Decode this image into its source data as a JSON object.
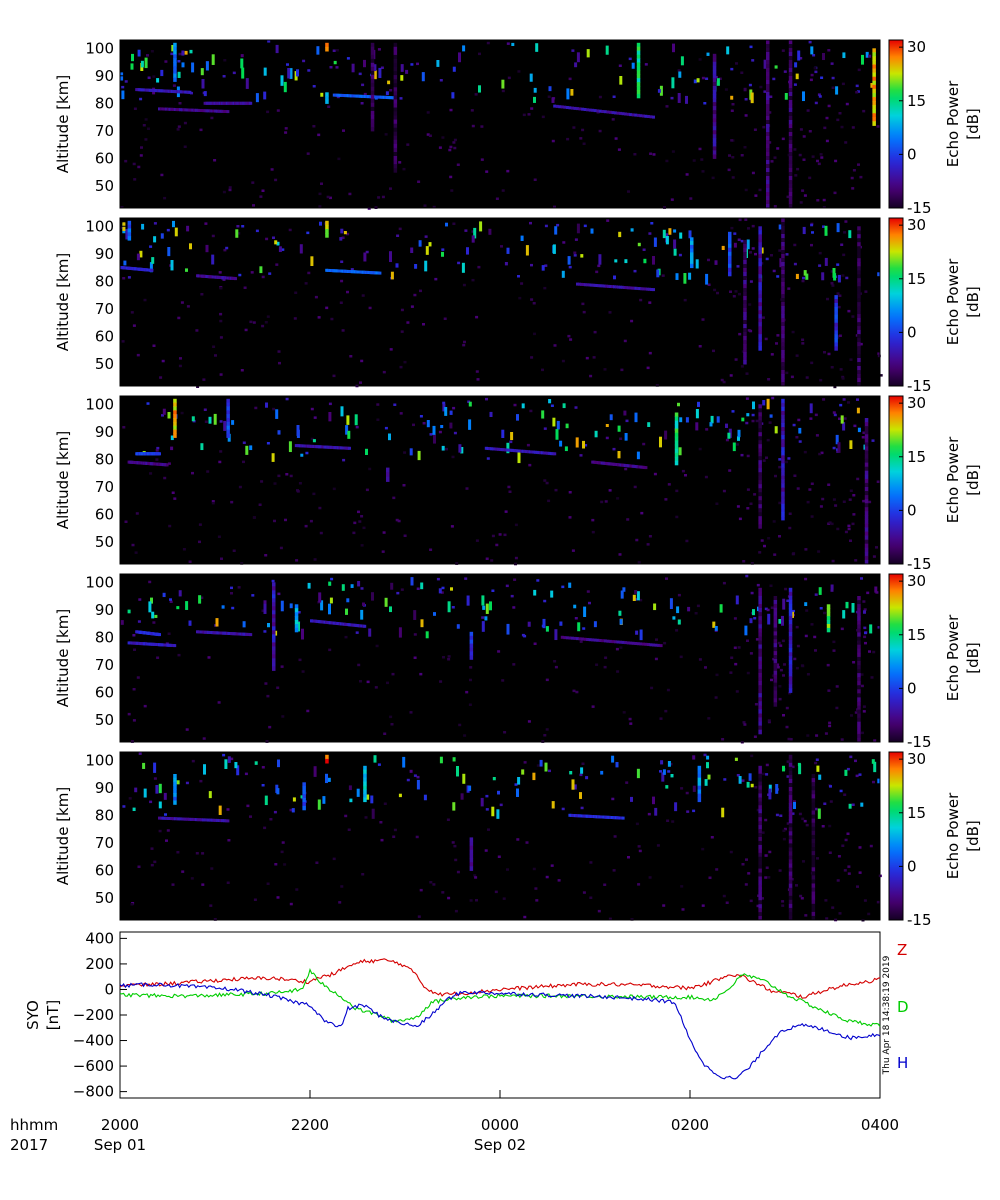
{
  "chart_data": [
    {
      "type": "heatmap",
      "panel": 1,
      "ylabel": "Altitude [km]",
      "yticks": [
        50,
        60,
        70,
        80,
        90,
        100
      ],
      "ylim": [
        42,
        103
      ],
      "xlim": [
        "2017-09-01 20:00",
        "2017-09-02 04:00"
      ],
      "colorbar": {
        "label": [
          "Echo Power",
          "[dB]"
        ],
        "ticks": [
          -15,
          0,
          15,
          30
        ],
        "range": [
          -15,
          32
        ]
      },
      "features": [
        {
          "type": "layer",
          "t": [
            0.02,
            0.09
          ],
          "alt": [
            85,
            84
          ],
          "value": -5
        },
        {
          "type": "layer",
          "t": [
            0.05,
            0.14
          ],
          "alt": [
            78,
            77
          ],
          "value": -8
        },
        {
          "type": "layer",
          "t": [
            0.11,
            0.17
          ],
          "alt": [
            80,
            80
          ],
          "value": -7
        },
        {
          "type": "layer",
          "t": [
            0.28,
            0.36
          ],
          "alt": [
            83,
            82
          ],
          "value": 2
        },
        {
          "type": "layer",
          "t": [
            0.57,
            0.7
          ],
          "alt": [
            79,
            75
          ],
          "value": -6
        },
        {
          "type": "column",
          "t": 0.07,
          "alt": [
            88,
            102
          ],
          "value": 5
        },
        {
          "type": "column",
          "t": 0.27,
          "alt": [
            80,
            84
          ],
          "value": 10
        },
        {
          "type": "column",
          "t": 0.27,
          "alt": [
            99,
            102
          ],
          "value": 30
        },
        {
          "type": "column",
          "t": 0.68,
          "alt": [
            82,
            102
          ],
          "value": 15
        },
        {
          "type": "column",
          "t": 0.33,
          "alt": [
            70,
            102
          ],
          "value": -12
        },
        {
          "type": "column",
          "t": 0.36,
          "alt": [
            55,
            102
          ],
          "value": -13
        },
        {
          "type": "column",
          "t": 0.78,
          "alt": [
            60,
            98
          ],
          "value": -8
        },
        {
          "type": "column",
          "t": 0.85,
          "alt": [
            42,
            103
          ],
          "value": -10
        },
        {
          "type": "column",
          "t": 0.88,
          "alt": [
            42,
            103
          ],
          "value": -11
        },
        {
          "type": "column",
          "t": 0.99,
          "alt": [
            72,
            100
          ],
          "value": 25
        }
      ]
    },
    {
      "type": "heatmap",
      "panel": 2,
      "ylabel": "Altitude [km]",
      "yticks": [
        50,
        60,
        70,
        80,
        90,
        100
      ],
      "ylim": [
        42,
        103
      ],
      "xlim": [
        "2017-09-01 20:00",
        "2017-09-02 04:00"
      ],
      "colorbar": {
        "label": [
          "Echo Power",
          "[dB]"
        ],
        "ticks": [
          -15,
          0,
          15,
          30
        ],
        "range": [
          -15,
          32
        ]
      },
      "features": [
        {
          "type": "layer",
          "t": [
            0.0,
            0.04
          ],
          "alt": [
            85,
            84
          ],
          "value": -3
        },
        {
          "type": "layer",
          "t": [
            0.1,
            0.15
          ],
          "alt": [
            82,
            81
          ],
          "value": -7
        },
        {
          "type": "layer",
          "t": [
            0.27,
            0.34
          ],
          "alt": [
            84,
            83
          ],
          "value": 3
        },
        {
          "type": "layer",
          "t": [
            0.6,
            0.7
          ],
          "alt": [
            79,
            77
          ],
          "value": -6
        },
        {
          "type": "column",
          "t": 0.01,
          "alt": [
            95,
            102
          ],
          "value": 3
        },
        {
          "type": "column",
          "t": 0.27,
          "alt": [
            96,
            102
          ],
          "value": 22
        },
        {
          "type": "column",
          "t": 0.75,
          "alt": [
            85,
            96
          ],
          "value": 5
        },
        {
          "type": "column",
          "t": 0.8,
          "alt": [
            82,
            98
          ],
          "value": 0
        },
        {
          "type": "column",
          "t": 0.82,
          "alt": [
            50,
            95
          ],
          "value": -10
        },
        {
          "type": "column",
          "t": 0.84,
          "alt": [
            55,
            100
          ],
          "value": -6
        },
        {
          "type": "column",
          "t": 0.87,
          "alt": [
            42,
            103
          ],
          "value": -11
        },
        {
          "type": "column",
          "t": 0.94,
          "alt": [
            55,
            75
          ],
          "value": -2
        },
        {
          "type": "column",
          "t": 0.97,
          "alt": [
            42,
            100
          ],
          "value": -12
        }
      ]
    },
    {
      "type": "heatmap",
      "panel": 3,
      "ylabel": "Altitude [km]",
      "yticks": [
        50,
        60,
        70,
        80,
        90,
        100
      ],
      "ylim": [
        42,
        103
      ],
      "xlim": [
        "2017-09-01 20:00",
        "2017-09-02 04:00"
      ],
      "colorbar": {
        "label": [
          "Echo Power",
          "[dB]"
        ],
        "ticks": [
          -15,
          0,
          15,
          30
        ],
        "range": [
          -15,
          32
        ]
      },
      "features": [
        {
          "type": "layer",
          "t": [
            0.01,
            0.06
          ],
          "alt": [
            79,
            78
          ],
          "value": -8
        },
        {
          "type": "layer",
          "t": [
            0.02,
            0.05
          ],
          "alt": [
            82,
            82
          ],
          "value": 0
        },
        {
          "type": "layer",
          "t": [
            0.23,
            0.3
          ],
          "alt": [
            85,
            84
          ],
          "value": -6
        },
        {
          "type": "layer",
          "t": [
            0.48,
            0.57
          ],
          "alt": [
            84,
            82
          ],
          "value": -5
        },
        {
          "type": "layer",
          "t": [
            0.62,
            0.69
          ],
          "alt": [
            79,
            77
          ],
          "value": -8
        },
        {
          "type": "column",
          "t": 0.07,
          "alt": [
            88,
            102
          ],
          "value": 25
        },
        {
          "type": "column",
          "t": 0.14,
          "alt": [
            88,
            102
          ],
          "value": 0
        },
        {
          "type": "column",
          "t": 0.35,
          "alt": [
            72,
            77
          ],
          "value": -5
        },
        {
          "type": "column",
          "t": 0.73,
          "alt": [
            78,
            97
          ],
          "value": 15
        },
        {
          "type": "column",
          "t": 0.84,
          "alt": [
            55,
            100
          ],
          "value": -11
        },
        {
          "type": "column",
          "t": 0.87,
          "alt": [
            58,
            102
          ],
          "value": -5
        },
        {
          "type": "column",
          "t": 0.98,
          "alt": [
            42,
            95
          ],
          "value": -10
        }
      ]
    },
    {
      "type": "heatmap",
      "panel": 4,
      "ylabel": "Altitude [km]",
      "yticks": [
        50,
        60,
        70,
        80,
        90,
        100
      ],
      "ylim": [
        42,
        103
      ],
      "xlim": [
        "2017-09-01 20:00",
        "2017-09-02 04:00"
      ],
      "colorbar": {
        "label": [
          "Echo Power",
          "[dB]"
        ],
        "ticks": [
          -15,
          0,
          15,
          30
        ],
        "range": [
          -15,
          32
        ]
      },
      "features": [
        {
          "type": "layer",
          "t": [
            0.01,
            0.07
          ],
          "alt": [
            78,
            77
          ],
          "value": -4
        },
        {
          "type": "layer",
          "t": [
            0.02,
            0.05
          ],
          "alt": [
            82,
            81
          ],
          "value": -2
        },
        {
          "type": "layer",
          "t": [
            0.1,
            0.17
          ],
          "alt": [
            82,
            81
          ],
          "value": -6
        },
        {
          "type": "layer",
          "t": [
            0.25,
            0.32
          ],
          "alt": [
            86,
            84
          ],
          "value": -5
        },
        {
          "type": "layer",
          "t": [
            0.58,
            0.71
          ],
          "alt": [
            80,
            77
          ],
          "value": -8
        },
        {
          "type": "column",
          "t": 0.2,
          "alt": [
            68,
            100
          ],
          "value": -5
        },
        {
          "type": "column",
          "t": 0.23,
          "alt": [
            82,
            92
          ],
          "value": 8
        },
        {
          "type": "column",
          "t": 0.46,
          "alt": [
            72,
            82
          ],
          "value": -3
        },
        {
          "type": "column",
          "t": 0.84,
          "alt": [
            45,
            98
          ],
          "value": -9
        },
        {
          "type": "column",
          "t": 0.86,
          "alt": [
            55,
            95
          ],
          "value": -11
        },
        {
          "type": "column",
          "t": 0.88,
          "alt": [
            60,
            98
          ],
          "value": -4
        },
        {
          "type": "column",
          "t": 0.93,
          "alt": [
            82,
            92
          ],
          "value": 18
        },
        {
          "type": "column",
          "t": 0.97,
          "alt": [
            42,
            95
          ],
          "value": -12
        }
      ]
    },
    {
      "type": "heatmap",
      "panel": 5,
      "ylabel": "Altitude [km]",
      "yticks": [
        50,
        60,
        70,
        80,
        90,
        100
      ],
      "ylim": [
        42,
        103
      ],
      "xlim": [
        "2017-09-01 20:00",
        "2017-09-02 04:00"
      ],
      "colorbar": {
        "label": [
          "Echo Power",
          "[dB]"
        ],
        "ticks": [
          -15,
          0,
          15,
          30
        ],
        "range": [
          -15,
          32
        ]
      },
      "features": [
        {
          "type": "layer",
          "t": [
            0.05,
            0.14
          ],
          "alt": [
            79,
            78
          ],
          "value": -6
        },
        {
          "type": "layer",
          "t": [
            0.59,
            0.66
          ],
          "alt": [
            80,
            79
          ],
          "value": -2
        },
        {
          "type": "column",
          "t": 0.07,
          "alt": [
            84,
            95
          ],
          "value": 5
        },
        {
          "type": "column",
          "t": 0.24,
          "alt": [
            82,
            92
          ],
          "value": 0
        },
        {
          "type": "column",
          "t": 0.27,
          "alt": [
            99,
            102
          ],
          "value": 30
        },
        {
          "type": "column",
          "t": 0.32,
          "alt": [
            85,
            98
          ],
          "value": 10
        },
        {
          "type": "column",
          "t": 0.46,
          "alt": [
            60,
            72
          ],
          "value": -8
        },
        {
          "type": "column",
          "t": 0.76,
          "alt": [
            85,
            98
          ],
          "value": 5
        },
        {
          "type": "column",
          "t": 0.84,
          "alt": [
            42,
            98
          ],
          "value": -11
        },
        {
          "type": "column",
          "t": 0.88,
          "alt": [
            42,
            102
          ],
          "value": -12
        },
        {
          "type": "column",
          "t": 0.91,
          "alt": [
            42,
            95
          ],
          "value": -13
        }
      ]
    },
    {
      "type": "line",
      "ylabel": [
        "SYO",
        "[nT]"
      ],
      "yticks": [
        -800,
        -600,
        -400,
        -200,
        0,
        200,
        400
      ],
      "ylim": [
        -850,
        450
      ],
      "xlabel_left": [
        "hhmm",
        "2017"
      ],
      "xticks": [
        {
          "t": 0.0,
          "time": "2000",
          "date": "Sep 01"
        },
        {
          "t": 0.25,
          "time": "2200",
          "date": ""
        },
        {
          "t": 0.5,
          "time": "0000",
          "date": "Sep 02"
        },
        {
          "t": 0.75,
          "time": "0200",
          "date": ""
        },
        {
          "t": 1.0,
          "time": "0400",
          "date": ""
        }
      ],
      "timestamp": "Thu Apr 18 14:38:19 2019",
      "series": [
        {
          "name": "Z",
          "color": "#d40000",
          "t": [
            0.0,
            0.05,
            0.1,
            0.15,
            0.2,
            0.23,
            0.25,
            0.26,
            0.28,
            0.3,
            0.32,
            0.35,
            0.37,
            0.39,
            0.4,
            0.42,
            0.45,
            0.5,
            0.55,
            0.6,
            0.65,
            0.7,
            0.75,
            0.78,
            0.8,
            0.82,
            0.84,
            0.86,
            0.88,
            0.9,
            0.93,
            0.96,
            1.0
          ],
          "values": [
            30,
            40,
            60,
            80,
            90,
            70,
            60,
            90,
            120,
            180,
            220,
            230,
            200,
            120,
            20,
            -40,
            -30,
            0,
            20,
            40,
            40,
            30,
            10,
            60,
            120,
            100,
            40,
            -20,
            -30,
            -60,
            0,
            40,
            80
          ]
        },
        {
          "name": "D",
          "color": "#00cc00",
          "t": [
            0.0,
            0.05,
            0.1,
            0.15,
            0.2,
            0.24,
            0.25,
            0.26,
            0.27,
            0.29,
            0.31,
            0.34,
            0.36,
            0.39,
            0.41,
            0.45,
            0.5,
            0.55,
            0.6,
            0.65,
            0.7,
            0.75,
            0.78,
            0.8,
            0.82,
            0.85,
            0.88,
            0.9,
            0.93,
            0.96,
            1.0
          ],
          "values": [
            -40,
            -50,
            -50,
            -40,
            -30,
            0,
            150,
            80,
            20,
            -50,
            -150,
            -200,
            -250,
            -220,
            -100,
            -60,
            -50,
            -50,
            -50,
            -55,
            -60,
            -60,
            -80,
            0,
            120,
            60,
            -50,
            -100,
            -180,
            -250,
            -280
          ]
        },
        {
          "name": "H",
          "color": "#0000cc",
          "t": [
            0.0,
            0.05,
            0.1,
            0.15,
            0.2,
            0.23,
            0.25,
            0.27,
            0.29,
            0.3,
            0.32,
            0.34,
            0.36,
            0.39,
            0.41,
            0.43,
            0.45,
            0.5,
            0.55,
            0.6,
            0.65,
            0.7,
            0.73,
            0.75,
            0.77,
            0.79,
            0.81,
            0.83,
            0.85,
            0.87,
            0.9,
            0.93,
            0.96,
            1.0
          ],
          "values": [
            30,
            40,
            20,
            0,
            -50,
            -100,
            -120,
            -250,
            -300,
            -150,
            -120,
            -200,
            -250,
            -290,
            -200,
            -80,
            -20,
            -30,
            -40,
            -50,
            -60,
            -80,
            -100,
            -400,
            -600,
            -680,
            -700,
            -600,
            -450,
            -320,
            -280,
            -320,
            -380,
            -350
          ]
        }
      ]
    }
  ]
}
